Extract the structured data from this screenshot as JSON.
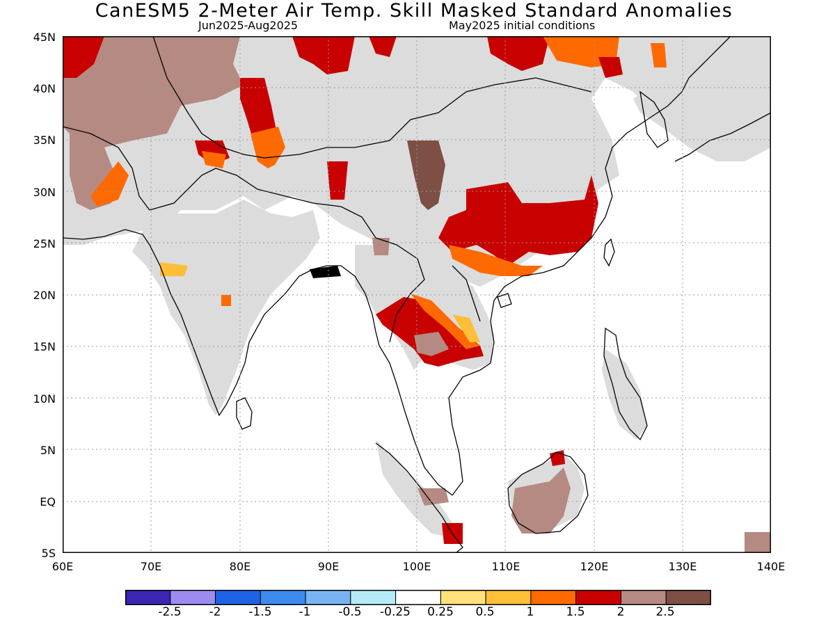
{
  "title": "CanESM5 2-Meter Air Temp. Skill Masked Standard Anomalies",
  "subtitle_left": "Jun2025-Aug2025",
  "subtitle_right": "May2025 initial conditions",
  "map": {
    "lat_ticks": [
      "45N",
      "40N",
      "35N",
      "30N",
      "25N",
      "20N",
      "15N",
      "10N",
      "5N",
      "EQ",
      "5S"
    ],
    "lon_ticks": [
      "60E",
      "70E",
      "80E",
      "90E",
      "100E",
      "110E",
      "120E",
      "130E",
      "140E"
    ],
    "lon_range": [
      60,
      140
    ],
    "lat_range": [
      -5,
      45
    ],
    "grid": "dotted",
    "mask_color": "#dcdcdc",
    "land_color": "#ffffff"
  },
  "colorbar": {
    "colors": [
      "#3b25b5",
      "#9e8bf0",
      "#1e63e6",
      "#3c8cf0",
      "#78b4f4",
      "#b4ebf7",
      "#ffffff",
      "#ffe27a",
      "#ffbe37",
      "#ff6a00",
      "#c80000",
      "#b48a82",
      "#7d4f45"
    ],
    "labels": [
      "-2.5",
      "-2",
      "-1.5",
      "-1",
      "-0.5",
      "-0.25",
      "0.25",
      "0.5",
      "1",
      "1.5",
      "2",
      "2.5"
    ]
  }
}
